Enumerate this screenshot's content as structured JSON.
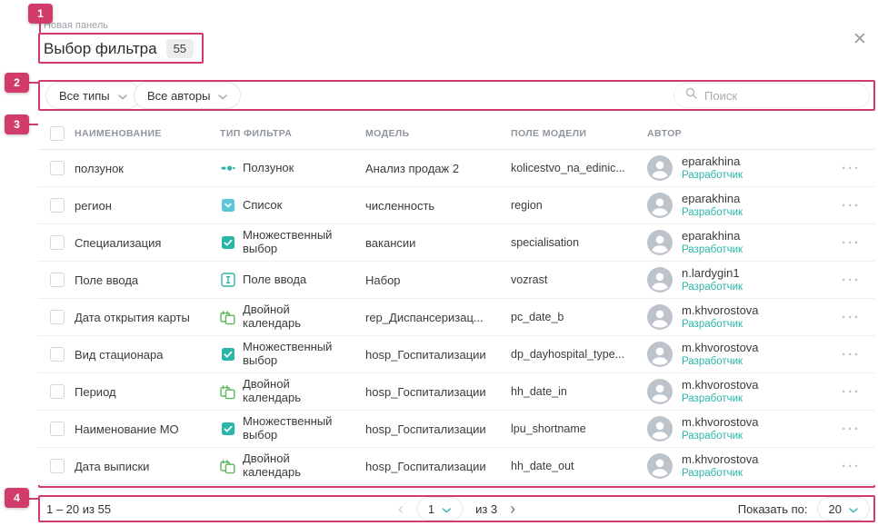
{
  "colors": {
    "annotation_pink": "#d13c6a",
    "accent_teal": "#2ab7a9",
    "calendar_green": "#5cb75c",
    "list_icon_blue": "#5bc6d8"
  },
  "annotations": {
    "badge_1": "1",
    "badge_2": "2",
    "badge_3": "3",
    "badge_4": "4"
  },
  "icons": {
    "close": "✕",
    "kebab": "···",
    "prev": "‹",
    "next": "›"
  },
  "header": {
    "eyebrow": "Новая панель",
    "title": "Выбор фильтра",
    "count": "55"
  },
  "filter_bar": {
    "type_dropdown": "Все типы",
    "author_dropdown": "Все авторы",
    "search_placeholder": "Поиск"
  },
  "table": {
    "headers": [
      "НАИМЕНОВАНИЕ",
      "ТИП ФИЛЬТРА",
      "МОДЕЛЬ",
      "ПОЛЕ МОДЕЛИ",
      "АВТОР"
    ],
    "rows": [
      {
        "name": "ползунок",
        "icon": "slider",
        "type": "Ползунок",
        "model": "Анализ продаж 2",
        "field": "kolicestvo_na_edinic...",
        "author": "eparakhina",
        "role": "Разработчик"
      },
      {
        "name": "регион",
        "icon": "list",
        "type": "Список",
        "model": "численность",
        "field": "region",
        "author": "eparakhina",
        "role": "Разработчик"
      },
      {
        "name": "Специализация",
        "icon": "multiselect",
        "type": "Множественный выбор",
        "model": "вакансии",
        "field": "specialisation",
        "author": "eparakhina",
        "role": "Разработчик"
      },
      {
        "name": "Поле ввода",
        "icon": "input",
        "type": "Поле ввода",
        "model": "Набор",
        "field": "vozrast",
        "author": "n.lardygin1",
        "role": "Разработчик"
      },
      {
        "name": "Дата открытия карты",
        "icon": "calendar",
        "type": "Двойной календарь",
        "model": "rep_Диспансеризац...",
        "field": "pc_date_b",
        "author": "m.khvorostova",
        "role": "Разработчик"
      },
      {
        "name": "Вид стационара",
        "icon": "multiselect",
        "type": "Множественный выбор",
        "model": "hosp_Госпитализации",
        "field": "dp_dayhospital_type...",
        "author": "m.khvorostova",
        "role": "Разработчик"
      },
      {
        "name": "Период",
        "icon": "calendar",
        "type": "Двойной календарь",
        "model": "hosp_Госпитализации",
        "field": "hh_date_in",
        "author": "m.khvorostova",
        "role": "Разработчик"
      },
      {
        "name": "Наименование МО",
        "icon": "multiselect",
        "type": "Множественный выбор",
        "model": "hosp_Госпитализации",
        "field": "lpu_shortname",
        "author": "m.khvorostova",
        "role": "Разработчик"
      },
      {
        "name": "Дата выписки",
        "icon": "calendar",
        "type": "Двойной календарь",
        "model": "hosp_Госпитализации",
        "field": "hh_date_out",
        "author": "m.khvorostova",
        "role": "Разработчик"
      }
    ]
  },
  "footer": {
    "range": "1 – 20 из 55",
    "current_page": "1",
    "of_pages": "из 3",
    "show_label": "Показать по:",
    "page_size": "20"
  }
}
